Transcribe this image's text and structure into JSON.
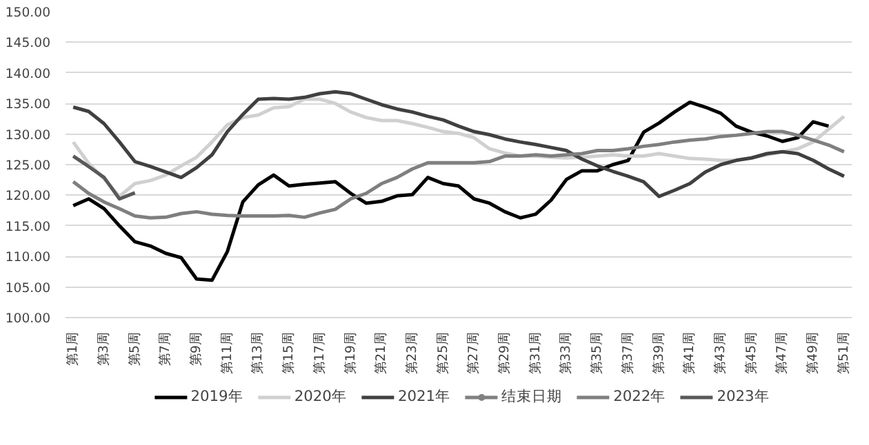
{
  "chart_data": {
    "type": "line",
    "categories": [
      "第1周",
      null,
      "第3周",
      null,
      "第5周",
      null,
      "第7周",
      null,
      "第9周",
      null,
      "第11周",
      null,
      "第13周",
      null,
      "第15周",
      null,
      "第17周",
      null,
      "第19周",
      null,
      "第21周",
      null,
      "第23周",
      null,
      "第25周",
      null,
      "第27周",
      null,
      "第29周",
      null,
      "第31周",
      null,
      "第33周",
      null,
      "第35周",
      null,
      "第37周",
      null,
      "第39周",
      null,
      "第41周",
      null,
      "第43周",
      null,
      "第45周",
      null,
      "第47周",
      null,
      "第49周",
      null,
      "第51周"
    ],
    "ylim": [
      100,
      150
    ],
    "yticks": [
      {
        "value": 100,
        "label": "100.00"
      },
      {
        "value": 105,
        "label": "105.00"
      },
      {
        "value": 110,
        "label": "110.00"
      },
      {
        "value": 115,
        "label": "115.00"
      },
      {
        "value": 120,
        "label": "120.00"
      },
      {
        "value": 125,
        "label": "125.00"
      },
      {
        "value": 130,
        "label": "130.00"
      },
      {
        "value": 135,
        "label": "135.00"
      },
      {
        "value": 140,
        "label": "140.00"
      },
      {
        "value": 145,
        "label": "145.00"
      },
      {
        "value": 150,
        "label": "150.00"
      }
    ],
    "grid": "y",
    "legend": "bottom",
    "series": [
      {
        "name": "2019年",
        "color": "#000000",
        "values": [
          118.3,
          119.4,
          117.8,
          115,
          112.4,
          111.7,
          110.5,
          109.8,
          106.3,
          106.1,
          110.8,
          118.9,
          121.7,
          123.3,
          121.5,
          121.8,
          122.0,
          122.2,
          120.3,
          118.7,
          119.0,
          119.9,
          120.1,
          122.9,
          121.9,
          121.5,
          119.4,
          118.7,
          117.3,
          116.3,
          116.9,
          119.2,
          122.6,
          124.0,
          124.0,
          125.0,
          125.7,
          130.3,
          131.8,
          133.6,
          135.2,
          134.4,
          133.4,
          131.3,
          130.3,
          129.7,
          128.8,
          129.4,
          132.0,
          131.3,
          null
        ]
      },
      {
        "name": "2020年",
        "color": "#d0d0d0",
        "values": [
          128.7,
          125.2,
          122.7,
          119.8,
          121.9,
          122.4,
          123.3,
          124.8,
          126.2,
          128.7,
          131.5,
          132.7,
          133.1,
          134.3,
          134.5,
          135.7,
          135.7,
          135.0,
          133.6,
          132.7,
          132.2,
          132.2,
          131.7,
          131.1,
          130.4,
          130.1,
          129.4,
          127.6,
          126.9,
          126.4,
          126.4,
          126.2,
          126.1,
          126.2,
          126.4,
          126.6,
          126.4,
          126.4,
          126.8,
          126.4,
          126.0,
          125.9,
          125.7,
          125.7,
          126.1,
          126.6,
          127.1,
          127.6,
          128.7,
          130.8,
          132.9
        ]
      },
      {
        "name": "2021年",
        "color": "#404040",
        "values": [
          134.4,
          133.7,
          131.7,
          128.7,
          125.5,
          124.7,
          123.8,
          122.9,
          124.5,
          126.6,
          130.4,
          133.2,
          135.7,
          135.8,
          135.7,
          136.0,
          136.6,
          136.9,
          136.6,
          135.7,
          134.8,
          134.1,
          133.6,
          132.9,
          132.3,
          131.3,
          130.4,
          129.9,
          129.2,
          128.7,
          128.3,
          127.8,
          127.3,
          125.9,
          124.8,
          123.9,
          123.1,
          122.2,
          119.8,
          120.8,
          121.9,
          123.8,
          125.0,
          125.7,
          126.1,
          126.8,
          127.1,
          126.8,
          125.7,
          124.3,
          123.1
        ]
      },
      {
        "name": "结束日期",
        "color": "#808080",
        "marker": "circle",
        "values": [
          null,
          null,
          null,
          null,
          null,
          null,
          null,
          null,
          null,
          null,
          null,
          null,
          null,
          null,
          null,
          null,
          null,
          null,
          null,
          null,
          null,
          null,
          null,
          null,
          null,
          null,
          null,
          null,
          null,
          null,
          null,
          null,
          null,
          null,
          null,
          null,
          null,
          null,
          null,
          null,
          null,
          null,
          null,
          null,
          null,
          null,
          null,
          null,
          null,
          null,
          null
        ]
      },
      {
        "name": "2022年",
        "color": "#7f7f7f",
        "values": [
          122.2,
          120.3,
          118.9,
          117.8,
          116.6,
          116.3,
          116.4,
          117.0,
          117.3,
          116.9,
          116.7,
          116.6,
          116.6,
          116.6,
          116.7,
          116.4,
          117.1,
          117.7,
          119.4,
          120.3,
          121.9,
          122.9,
          124.3,
          125.3,
          125.3,
          125.3,
          125.3,
          125.5,
          126.4,
          126.4,
          126.6,
          126.4,
          126.6,
          126.8,
          127.3,
          127.3,
          127.6,
          128.0,
          128.3,
          128.7,
          129.0,
          129.2,
          129.6,
          129.8,
          130.1,
          130.4,
          130.4,
          129.8,
          129.0,
          128.2,
          127.1
        ]
      },
      {
        "name": "2023年",
        "color": "#595959",
        "values": [
          126.4,
          124.7,
          122.9,
          119.4,
          120.4,
          null,
          null,
          null,
          null,
          null,
          null,
          null,
          null,
          null,
          null,
          null,
          null,
          null,
          null,
          null,
          null,
          null,
          null,
          null,
          null,
          null,
          null,
          null,
          null,
          null,
          null,
          null,
          null,
          null,
          null,
          null,
          null,
          null,
          null,
          null,
          null,
          null,
          null,
          null,
          null,
          null,
          null,
          null,
          null,
          null,
          null
        ]
      }
    ]
  }
}
